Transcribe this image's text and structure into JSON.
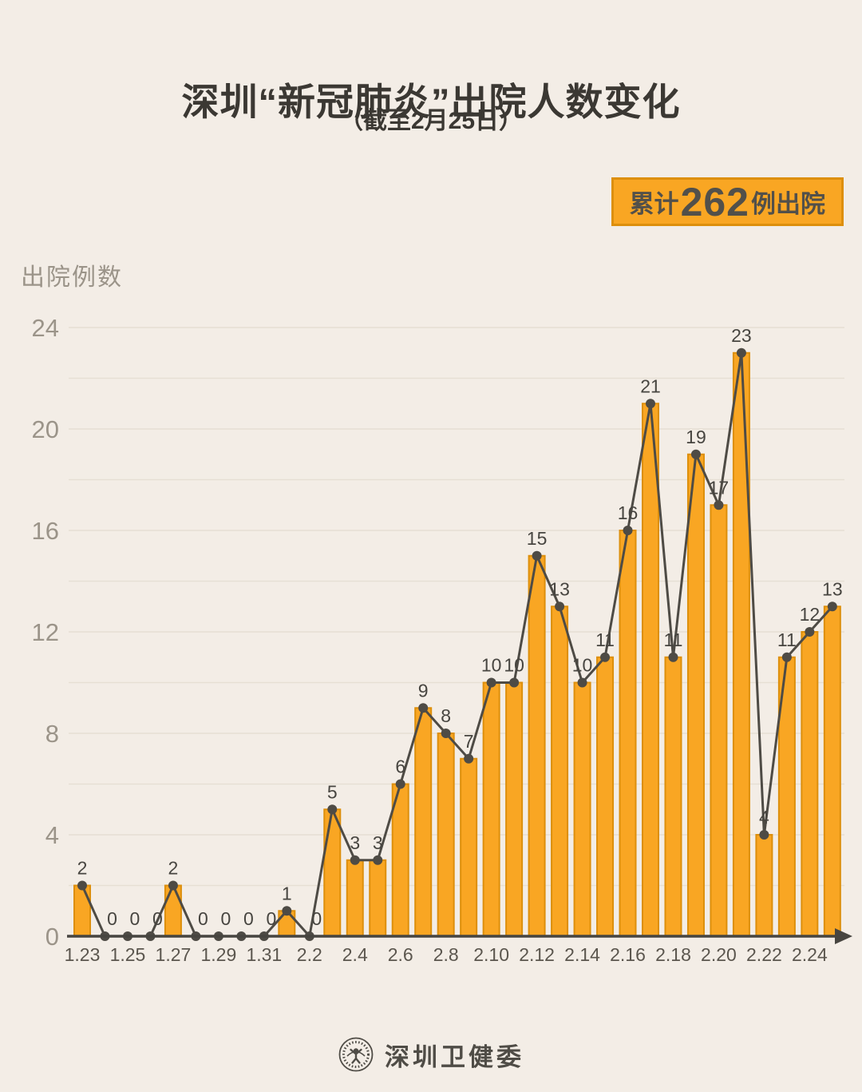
{
  "page": {
    "title": "深圳“新冠肺炎”出院人数变化",
    "subtitle": "（截至2月25日）",
    "badge": {
      "prefix": "累计",
      "number": "262",
      "suffix": "例出院"
    },
    "y_axis_label": "出院例数",
    "footer_logo_text": "深圳卫健委"
  },
  "colors": {
    "background": "#F3EDE6",
    "bar_fill": "#F9A623",
    "bar_border": "#DD8F0C",
    "line": "#4E4B45",
    "dot": "#4E4B45",
    "grid": "#E6DFD4",
    "axis": "#474540",
    "value_label": "#474540",
    "y_tick_text": "#9B9489",
    "x_tick_text": "#5B564E",
    "title_text": "#3B3833",
    "badge_text": "#52504A",
    "footer_text": "#4F4C46"
  },
  "chart_data": {
    "type": "bar",
    "subtype": "bar-with-line-overlay",
    "title": "深圳“新冠肺炎”出院人数变化（截至2月25日）",
    "ylabel": "出院例数",
    "xlabel": "",
    "ylim": [
      0,
      24
    ],
    "yticks": [
      0,
      4,
      8,
      12,
      16,
      20,
      24
    ],
    "grid_step": 2,
    "grid": "horizontal only",
    "legend": "none",
    "xtick_every": 2,
    "categories": [
      "1.23",
      "1.24",
      "1.25",
      "1.26",
      "1.27",
      "1.28",
      "1.29",
      "1.30",
      "1.31",
      "2.1",
      "2.2",
      "2.3",
      "2.4",
      "2.5",
      "2.6",
      "2.7",
      "2.8",
      "2.9",
      "2.10",
      "2.11",
      "2.12",
      "2.13",
      "2.14",
      "2.15",
      "2.16",
      "2.17",
      "2.18",
      "2.19",
      "2.20",
      "2.21",
      "2.22",
      "2.23",
      "2.24",
      "2.25"
    ],
    "values": [
      2,
      0,
      0,
      0,
      2,
      0,
      0,
      0,
      0,
      1,
      0,
      5,
      3,
      3,
      6,
      9,
      8,
      7,
      10,
      10,
      15,
      13,
      10,
      11,
      16,
      21,
      11,
      19,
      17,
      23,
      4,
      11,
      12,
      13
    ],
    "data_labels_shown": true,
    "cumulative_total": 262
  }
}
